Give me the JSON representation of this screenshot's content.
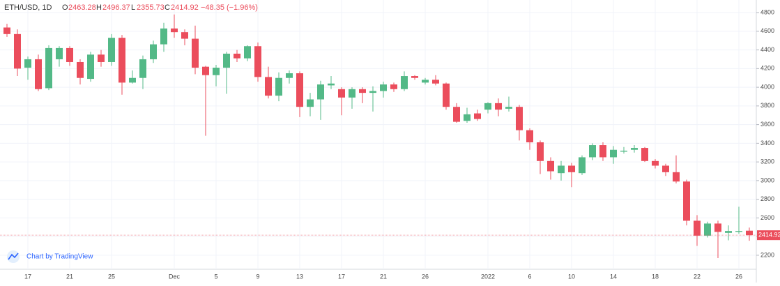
{
  "chart_data": {
    "type": "candlestick",
    "header": {
      "symbol": "ETH/USD, 1D",
      "open_label": "O",
      "high_label": "H",
      "low_label": "L",
      "close_label": "C",
      "open": "2463.28",
      "high": "2496.37",
      "low": "2355.73",
      "close": "2414.92",
      "change": "−48.35 (−1.96%)"
    },
    "attribution": "Chart by TradingView",
    "up_color": "#53b987",
    "down_color": "#eb4d5c",
    "categories": [
      null,
      null,
      "17",
      null,
      null,
      null,
      "21",
      null,
      null,
      null,
      "25",
      null,
      null,
      null,
      null,
      null,
      "Dec",
      null,
      null,
      null,
      "5",
      null,
      null,
      null,
      "9",
      null,
      null,
      null,
      "13",
      null,
      null,
      null,
      "17",
      null,
      null,
      null,
      "21",
      null,
      null,
      null,
      "26",
      null,
      null,
      null,
      null,
      null,
      "2022",
      null,
      null,
      null,
      "6",
      null,
      null,
      null,
      "10",
      null,
      null,
      null,
      "14",
      null,
      null,
      null,
      "18",
      null,
      null,
      null,
      "22",
      null,
      null,
      null,
      "26",
      null
    ],
    "open": [
      4640,
      4570,
      4210,
      4300,
      3990,
      4300,
      4420,
      4270,
      4090,
      4350,
      4270,
      4530,
      4050,
      4100,
      4300,
      4460,
      4630,
      4590,
      4520,
      4220,
      4130,
      4210,
      4360,
      4310,
      4440,
      4110,
      3910,
      4100,
      4150,
      3790,
      3870,
      4020,
      3980,
      3890,
      3980,
      3940,
      3960,
      4030,
      3980,
      4120,
      4050,
      4080,
      4040,
      3790,
      3640,
      3720,
      3760,
      3830,
      3770,
      3790,
      3540,
      3410,
      3210,
      3080,
      3160,
      3080,
      3250,
      3380,
      3250,
      3310,
      3330,
      3350,
      3210,
      3160,
      3090,
      2990,
      2570,
      2410,
      2540,
      2440,
      2450,
      2463.28
    ],
    "high": [
      4680,
      4620,
      4330,
      4350,
      4450,
      4440,
      4440,
      4300,
      4380,
      4400,
      4570,
      4560,
      4180,
      4340,
      4500,
      4690,
      4780,
      4620,
      4660,
      4230,
      4240,
      4380,
      4400,
      4450,
      4480,
      4220,
      4160,
      4180,
      4170,
      3940,
      4070,
      4120,
      4000,
      4000,
      4000,
      4010,
      4060,
      4050,
      4170,
      4130,
      4100,
      4130,
      4050,
      3830,
      3780,
      3760,
      3840,
      3880,
      3900,
      3810,
      3560,
      3430,
      3250,
      3210,
      3190,
      3270,
      3400,
      3410,
      3370,
      3360,
      3380,
      3360,
      3230,
      3180,
      3270,
      3010,
      2630,
      2560,
      2570,
      2520,
      2720,
      2496.37
    ],
    "low": [
      4540,
      4120,
      4080,
      3960,
      3970,
      4220,
      4230,
      4030,
      4060,
      4220,
      4230,
      3920,
      4040,
      3980,
      4260,
      4380,
      4530,
      4450,
      4140,
      3480,
      4010,
      3930,
      4270,
      4280,
      4060,
      3880,
      3850,
      4040,
      3680,
      3690,
      3650,
      3980,
      3700,
      3770,
      3830,
      3740,
      3890,
      3950,
      3960,
      4080,
      4030,
      4020,
      3760,
      3620,
      3620,
      3640,
      3720,
      3690,
      3740,
      3430,
      3330,
      3070,
      3010,
      3000,
      2930,
      3060,
      3220,
      3210,
      3180,
      3290,
      3300,
      3200,
      3130,
      3050,
      2970,
      2520,
      2300,
      2390,
      2170,
      2360,
      2430,
      2355.73
    ],
    "close": [
      4570,
      4200,
      4300,
      3980,
      4420,
      4420,
      4270,
      4100,
      4350,
      4270,
      4530,
      4050,
      4100,
      4300,
      4460,
      4630,
      4590,
      4520,
      4210,
      4130,
      4210,
      4360,
      4310,
      4440,
      4110,
      3910,
      4100,
      4150,
      3790,
      3870,
      4030,
      4040,
      3890,
      3980,
      3940,
      3960,
      4030,
      3980,
      4120,
      4100,
      4080,
      4040,
      3790,
      3630,
      3710,
      3660,
      3830,
      3760,
      3790,
      3540,
      3410,
      3210,
      3100,
      3160,
      3090,
      3250,
      3380,
      3250,
      3330,
      3320,
      3350,
      3210,
      3160,
      3090,
      2990,
      2570,
      2410,
      2540,
      2450,
      2460,
      2460,
      2414.92
    ],
    "ylim": [
      2050,
      4935
    ],
    "yticks": [
      2200,
      2400,
      2600,
      2800,
      3000,
      3200,
      3400,
      3600,
      3800,
      4000,
      4200,
      4400,
      4600,
      4800
    ],
    "grid": true
  }
}
